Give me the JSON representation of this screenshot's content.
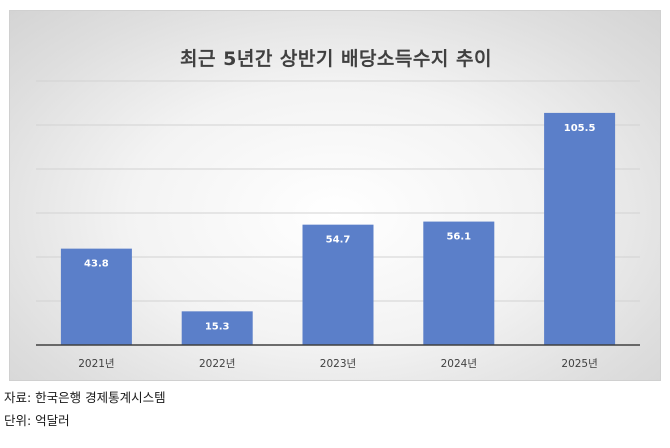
{
  "chart_data": {
    "type": "bar",
    "title": "최근 5년간 상반기 배당소득수지 추이",
    "categories": [
      "2021년",
      "2022년",
      "2023년",
      "2024년",
      "2025년"
    ],
    "values": [
      43.8,
      15.3,
      54.7,
      56.1,
      105.5
    ],
    "data_labels": [
      "43.8",
      "15.3",
      "54.7",
      "56.1",
      "105.5"
    ],
    "ylim": [
      0,
      120
    ],
    "grid": true,
    "legend": "none",
    "bar_color": "#5b7fc9",
    "label_color": "#ffffff"
  },
  "source_text": "자료: 한국은행 경제통계시스템",
  "unit_text": "단위: 억달러"
}
